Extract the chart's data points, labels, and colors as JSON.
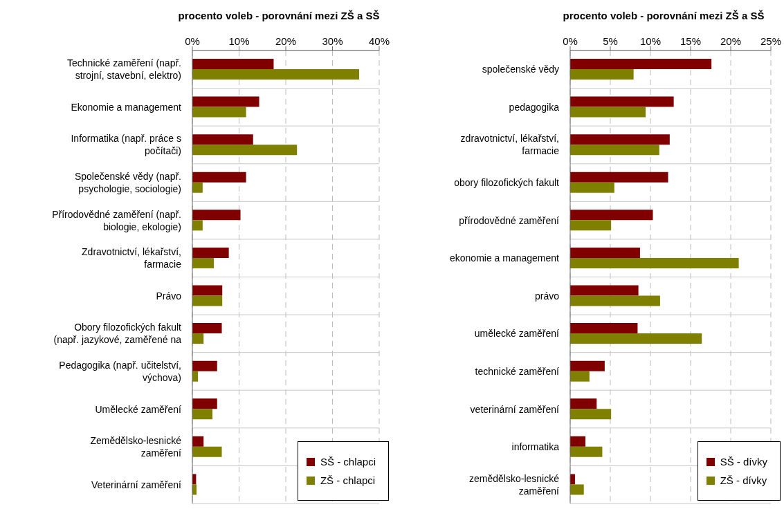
{
  "chart_data": [
    {
      "type": "bar",
      "orientation": "horizontal",
      "title": "procento voleb - porovnání mezi ZŠ a SŠ",
      "categories": [
        "Technické zaměření (např.\nstrojní, stavební, elektro)",
        "Ekonomie a management",
        "Informatika (např. práce s\npočítači)",
        "Společenské vědy (např.\npsychologie, sociologie)",
        "Přírodovědné zaměření (např.\nbiologie, ekologie)",
        "Zdravotnictví, lékařství,\nfarmacie",
        "Právo",
        "Obory filozofických fakult\n(např. jazykové, zaměřené na",
        "Pedagogika (např. učitelství,\nvýchova)",
        "Umělecké zaměření",
        "Zemědělsko-lesnické\nzaměření",
        "Veterinární zaměření"
      ],
      "series": [
        {
          "name": "SŠ - chlapci",
          "color": "#800000",
          "values": [
            17.4,
            14.3,
            13.0,
            11.5,
            10.3,
            7.8,
            6.4,
            6.3,
            5.3,
            5.3,
            2.4,
            0.8
          ]
        },
        {
          "name": "ZŠ - chlapci",
          "color": "#808000",
          "values": [
            35.7,
            11.5,
            22.4,
            2.2,
            2.2,
            4.6,
            6.4,
            2.4,
            1.2,
            4.3,
            6.3,
            0.9
          ]
        }
      ],
      "xlim": [
        0,
        40
      ],
      "xticks": [
        {
          "value": 0,
          "label": "0%"
        },
        {
          "value": 10,
          "label": "10%"
        },
        {
          "value": 20,
          "label": "20%"
        },
        {
          "value": 30,
          "label": "30%"
        },
        {
          "value": 40,
          "label": "40%"
        }
      ],
      "grid": true,
      "legend": "bottom right"
    },
    {
      "type": "bar",
      "orientation": "horizontal",
      "title": "procento voleb - porovnání mezi ZŠ a SŠ",
      "categories": [
        "společenské vědy",
        "pedagogika",
        "zdravotnictví, lékařství,\nfarmacie",
        "obory filozofických fakult",
        "přírodovědné zaměření",
        "ekonomie a management",
        "právo",
        "umělecké zaměření",
        "technické zaměření",
        "veterinární zaměření",
        "informatika",
        "zemědělsko-lesnické\nzaměření"
      ],
      "series": [
        {
          "name": "SŠ - dívky",
          "color": "#800000",
          "values": [
            17.6,
            12.9,
            12.4,
            12.2,
            10.3,
            8.7,
            8.5,
            8.4,
            4.3,
            3.3,
            1.9,
            0.6
          ]
        },
        {
          "name": "ZŠ - dívky",
          "color": "#808000",
          "values": [
            7.9,
            9.4,
            11.1,
            5.5,
            5.1,
            21.0,
            11.2,
            16.4,
            2.4,
            5.1,
            4.0,
            1.7
          ]
        }
      ],
      "xlim": [
        0,
        25
      ],
      "xticks": [
        {
          "value": 0,
          "label": "0%"
        },
        {
          "value": 5,
          "label": "5%"
        },
        {
          "value": 10,
          "label": "10%"
        },
        {
          "value": 15,
          "label": "15%"
        },
        {
          "value": 20,
          "label": "20%"
        },
        {
          "value": 25,
          "label": "25%"
        }
      ],
      "grid": true,
      "legend": "bottom right"
    }
  ]
}
